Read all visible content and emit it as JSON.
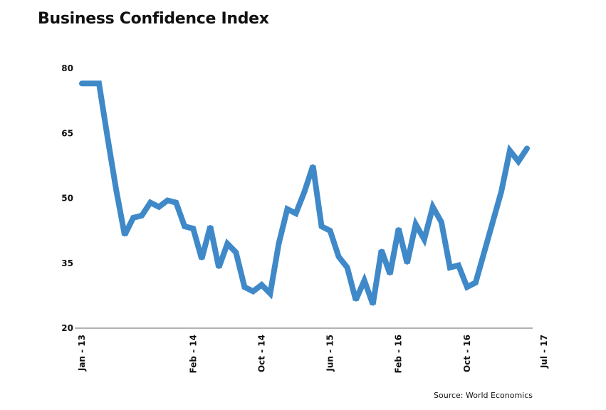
{
  "chart_data": {
    "type": "line",
    "title": "Business Confidence Index",
    "source": "Source: World Economics",
    "xlabel": "",
    "ylabel": "",
    "ylim": [
      20,
      80
    ],
    "yticks": [
      80,
      65,
      50,
      35,
      20
    ],
    "x_tick_labels": [
      {
        "index": 0,
        "label": "Jan - 13"
      },
      {
        "index": 13,
        "label": "Feb - 14"
      },
      {
        "index": 21,
        "label": "Oct - 14"
      },
      {
        "index": 29,
        "label": "Jun - 15"
      },
      {
        "index": 37,
        "label": "Feb - 16"
      },
      {
        "index": 45,
        "label": "Oct - 16"
      },
      {
        "index": 54,
        "label": "Jul - 17"
      }
    ],
    "grid": false,
    "line_color": "#3f89c9",
    "series": [
      {
        "values": [
          76.5,
          76.5,
          76.5,
          64,
          52,
          41.5,
          45.5,
          46,
          49,
          48,
          49.5,
          49,
          43.5,
          43,
          36,
          43.5,
          34,
          39.5,
          37.5,
          29.5,
          28.5,
          30,
          28,
          39.5,
          47.5,
          46.5,
          51.5,
          57.5,
          43.5,
          42.5,
          36.5,
          34,
          26.5,
          31,
          25.5,
          38,
          32.5,
          43,
          35,
          44,
          40.5,
          48,
          44.5,
          34,
          34.5,
          29.5,
          30.5,
          37.5,
          44.5,
          51.5,
          61,
          58.5,
          61.5
        ]
      }
    ]
  }
}
